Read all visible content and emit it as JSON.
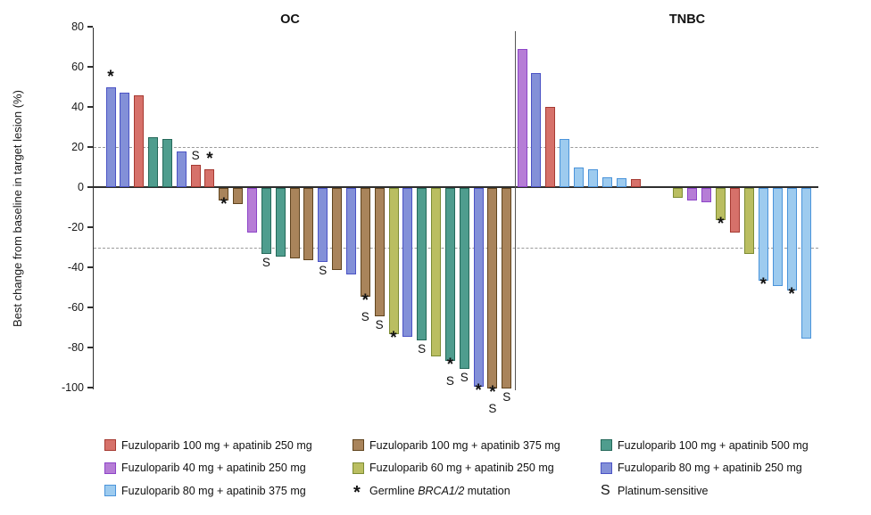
{
  "chart_data": {
    "type": "bar",
    "title": "",
    "ylabel": "Best change from baseline in target lesion (%)",
    "ylim": [
      -100,
      80
    ],
    "yticks": [
      80,
      60,
      40,
      20,
      0,
      -20,
      -40,
      -60,
      -80,
      -100
    ],
    "reference_lines": [
      20,
      -30
    ],
    "grid": "dashed-reference-only",
    "legend_position": "bottom",
    "marker_meanings": {
      "*": "Germline BRCA1/2 mutation",
      "S": "Platinum-sensitive"
    },
    "panels": [
      {
        "title": "OC",
        "bars": [
          {
            "group": "blue",
            "value": 50,
            "markers": [
              "*"
            ]
          },
          {
            "group": "blue",
            "value": 47,
            "markers": []
          },
          {
            "group": "red",
            "value": 46,
            "markers": []
          },
          {
            "group": "teal",
            "value": 25,
            "markers": []
          },
          {
            "group": "teal",
            "value": 24,
            "markers": []
          },
          {
            "group": "blue",
            "value": 18,
            "markers": []
          },
          {
            "group": "red",
            "value": 11,
            "markers": [
              "S"
            ]
          },
          {
            "group": "red",
            "value": 9,
            "markers": [
              "*"
            ]
          },
          {
            "group": "brown",
            "value": -6,
            "markers": [
              "*"
            ]
          },
          {
            "group": "brown",
            "value": -8,
            "markers": []
          },
          {
            "group": "purple",
            "value": -22,
            "markers": []
          },
          {
            "group": "teal",
            "value": -33,
            "markers": [
              "S"
            ]
          },
          {
            "group": "teal",
            "value": -34,
            "markers": []
          },
          {
            "group": "brown",
            "value": -35,
            "markers": []
          },
          {
            "group": "brown",
            "value": -36,
            "markers": []
          },
          {
            "group": "blue",
            "value": -37,
            "markers": [
              "S"
            ]
          },
          {
            "group": "brown",
            "value": -41,
            "markers": []
          },
          {
            "group": "blue",
            "value": -43,
            "markers": []
          },
          {
            "group": "brown",
            "value": -54,
            "markers": [
              "*",
              "S"
            ]
          },
          {
            "group": "brown",
            "value": -64,
            "markers": [
              "S"
            ]
          },
          {
            "group": "olive",
            "value": -73,
            "markers": [
              "*"
            ]
          },
          {
            "group": "blue",
            "value": -74,
            "markers": []
          },
          {
            "group": "teal",
            "value": -76,
            "markers": [
              "S"
            ]
          },
          {
            "group": "olive",
            "value": -84,
            "markers": []
          },
          {
            "group": "teal",
            "value": -86,
            "markers": [
              "*",
              "S"
            ]
          },
          {
            "group": "teal",
            "value": -90,
            "markers": [
              "S"
            ]
          },
          {
            "group": "blue",
            "value": -99,
            "markers": [
              "*"
            ]
          },
          {
            "group": "brown",
            "value": -100,
            "markers": [
              "*",
              "S"
            ]
          },
          {
            "group": "brown",
            "value": -100,
            "markers": [
              "S"
            ]
          }
        ]
      },
      {
        "title": "TNBC",
        "gap_after_bar": 9,
        "gap_slots": 2,
        "bars": [
          {
            "group": "purple",
            "value": 69,
            "markers": []
          },
          {
            "group": "blue",
            "value": 57,
            "markers": []
          },
          {
            "group": "red",
            "value": 40,
            "markers": []
          },
          {
            "group": "lightblue",
            "value": 24,
            "markers": []
          },
          {
            "group": "lightblue",
            "value": 10,
            "markers": []
          },
          {
            "group": "lightblue",
            "value": 9,
            "markers": []
          },
          {
            "group": "lightblue",
            "value": 5,
            "markers": []
          },
          {
            "group": "lightblue",
            "value": 4.5,
            "markers": []
          },
          {
            "group": "red",
            "value": 4,
            "markers": []
          },
          {
            "group": "olive",
            "value": -5,
            "markers": []
          },
          {
            "group": "purple",
            "value": -6,
            "markers": []
          },
          {
            "group": "purple",
            "value": -7,
            "markers": []
          },
          {
            "group": "olive",
            "value": -16,
            "markers": [
              "*"
            ]
          },
          {
            "group": "red",
            "value": -22,
            "markers": []
          },
          {
            "group": "olive",
            "value": -33,
            "markers": []
          },
          {
            "group": "lightblue",
            "value": -46,
            "markers": [
              "*"
            ]
          },
          {
            "group": "lightblue",
            "value": -49,
            "markers": []
          },
          {
            "group": "lightblue",
            "value": -51,
            "markers": [
              "*"
            ]
          },
          {
            "group": "lightblue",
            "value": -75,
            "markers": []
          }
        ]
      }
    ]
  },
  "colors": {
    "red": {
      "fill": "#d6716a",
      "stroke": "#a63a32"
    },
    "purple": {
      "fill": "#b67dd6",
      "stroke": "#8d45c8"
    },
    "lightblue": {
      "fill": "#9dcbef",
      "stroke": "#4b94da"
    },
    "brown": {
      "fill": "#a9845b",
      "stroke": "#60441e"
    },
    "olive": {
      "fill": "#babe61",
      "stroke": "#7d8c34"
    },
    "teal": {
      "fill": "#4f9d8e",
      "stroke": "#25695a"
    },
    "blue": {
      "fill": "#8390d8",
      "stroke": "#4b53c5"
    },
    "axis": "#2e2e2e",
    "dashed": "#9a9a9a"
  },
  "legend": {
    "columns": [
      [
        {
          "swatch": "red",
          "label": "Fuzuloparib 100 mg + apatinib 250 mg"
        },
        {
          "swatch": "purple",
          "label": "Fuzuloparib 40 mg + apatinib 250 mg"
        },
        {
          "swatch": "lightblue",
          "label": "Fuzuloparib 80 mg + apatinib 375 mg"
        }
      ],
      [
        {
          "swatch": "brown",
          "label": "Fuzuloparib 100 mg + apatinib 375 mg"
        },
        {
          "swatch": "olive",
          "label": "Fuzuloparib 60 mg + apatinib 250 mg"
        },
        {
          "symbol": "*",
          "label_prefix": "Germline ",
          "label_italic": "BRCA1/2",
          "label_suffix": " mutation"
        }
      ],
      [
        {
          "swatch": "teal",
          "label": "Fuzuloparib 100 mg + apatinib 500 mg"
        },
        {
          "swatch": "blue",
          "label": "Fuzuloparib 80 mg + apatinib 250 mg"
        },
        {
          "symbol": "S",
          "label": "Platinum-sensitive"
        }
      ]
    ]
  }
}
